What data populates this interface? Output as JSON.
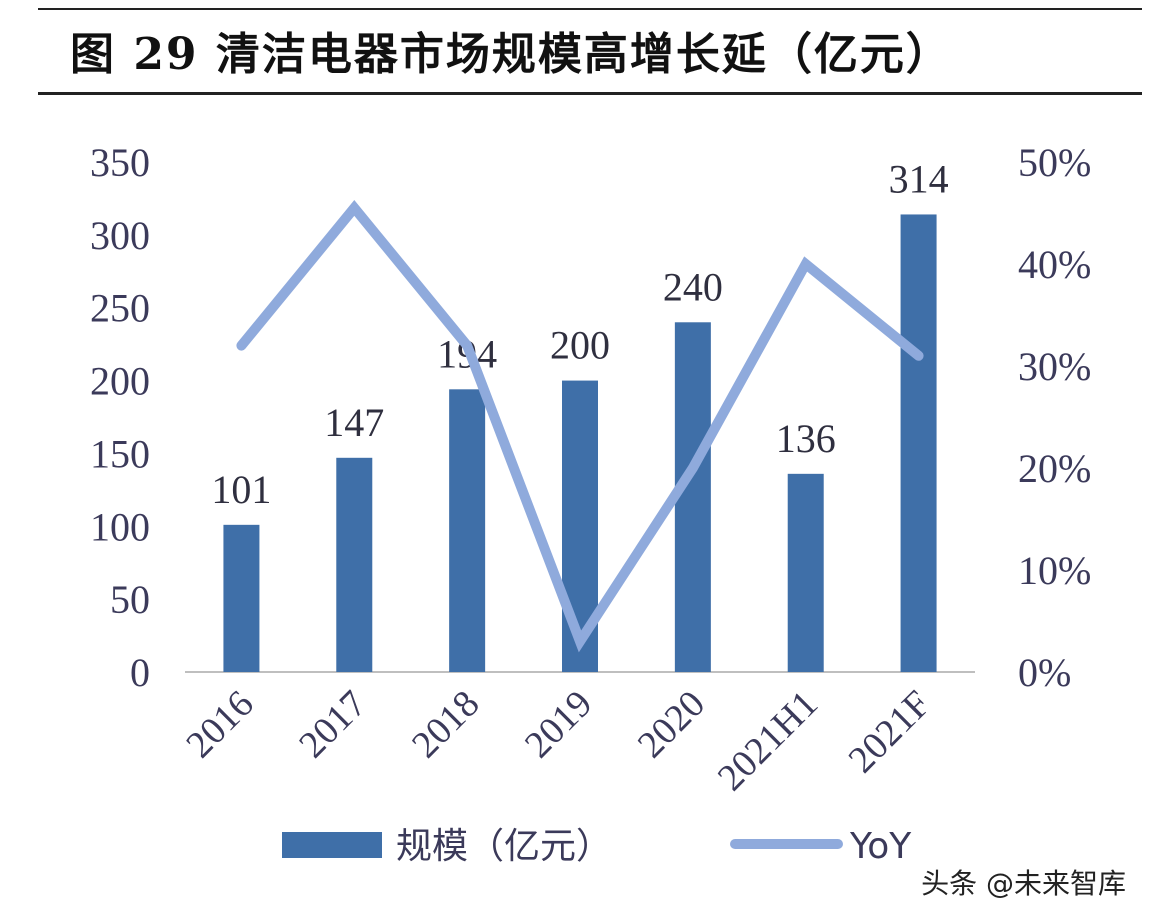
{
  "title": "图 29 清洁电器市场规模高增长延（亿元）",
  "watermark": "头条 @未来智库",
  "colors": {
    "bar": "#3F6FA8",
    "line": "#8FAADC",
    "axis": "#bfbfbf"
  },
  "chart_data": {
    "type": "bar",
    "title": "图 29 清洁电器市场规模高增长延（亿元）",
    "categories": [
      "2016",
      "2017",
      "2018",
      "2019",
      "2020",
      "2021H1",
      "2021F"
    ],
    "series": [
      {
        "name": "规模（亿元）",
        "type": "bar",
        "axis": "left",
        "values": [
          101,
          147,
          194,
          200,
          240,
          136,
          314
        ]
      },
      {
        "name": "YoY",
        "type": "line",
        "axis": "right",
        "values": [
          0.32,
          0.455,
          0.32,
          0.03,
          0.2,
          0.4,
          0.31
        ]
      }
    ],
    "y_left": {
      "min": 0,
      "max": 350,
      "ticks": [
        "0",
        "50",
        "100",
        "150",
        "200",
        "250",
        "300",
        "350"
      ]
    },
    "y_right": {
      "min": 0,
      "max": 0.5,
      "ticks": [
        "0%",
        "10%",
        "20%",
        "30%",
        "40%",
        "50%"
      ]
    },
    "data_labels": [
      "101",
      "147",
      "194",
      "200",
      "240",
      "136",
      "314"
    ],
    "grid": false,
    "legend": "bottom"
  }
}
